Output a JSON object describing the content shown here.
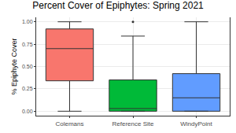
{
  "chart_data": {
    "type": "box",
    "title": "Percent Cover of Epiphytes: Spring 2021",
    "y_label": "% Epiphyte Cover",
    "categories": [
      "Colemans",
      "Reference Site",
      "WindyPoint"
    ],
    "series": [
      {
        "name": "Colemans",
        "color": "#F8766D",
        "lowerfence": 0,
        "q1": 0.34,
        "median": 0.7,
        "q3": 0.92,
        "upperfence": 1.0,
        "outliers": []
      },
      {
        "name": "Reference Site",
        "color": "#00BA38",
        "lowerfence": 0,
        "q1": 0,
        "median": 0.03,
        "q3": 0.35,
        "upperfence": 0.84,
        "outliers": [
          1.0
        ]
      },
      {
        "name": "WindyPoint",
        "color": "#619CFF",
        "lowerfence": 0,
        "q1": 0,
        "median": 0.15,
        "q3": 0.42,
        "upperfence": 1.0,
        "outliers": []
      }
    ],
    "ylim": [
      -0.05,
      1.05
    ],
    "yticks": [
      {
        "value": 0,
        "label": "0.00"
      },
      {
        "value": 0.25,
        "label": "0.25"
      },
      {
        "value": 0.5,
        "label": "0.50"
      },
      {
        "value": 0.75,
        "label": "0.75"
      },
      {
        "value": 1.0,
        "label": "1.00"
      }
    ],
    "grid": true
  }
}
